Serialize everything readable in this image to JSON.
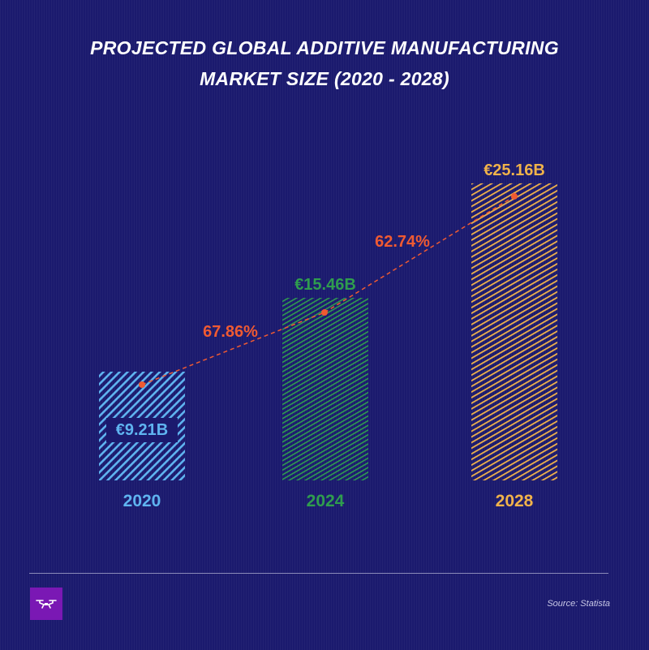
{
  "title_lines": [
    "PROJECTED GLOBAL ADDITIVE MANUFACTURING",
    "MARKET SIZE (2020 - 2028)"
  ],
  "source": "Source: Statista",
  "colors": {
    "background": "#1b1a6e",
    "bar_2020": "#5fb4f0",
    "bar_2024": "#2f9d4e",
    "bar_2028": "#f0b24a",
    "growth": "#ef5a32",
    "logo": "#7a18b4"
  },
  "logo_icon": "drone-icon",
  "chart_data": {
    "type": "bar",
    "title": "PROJECTED GLOBAL ADDITIVE MANUFACTURING MARKET SIZE (2020 - 2028)",
    "categories": [
      "2020",
      "2024",
      "2028"
    ],
    "values": [
      9.21,
      15.46,
      25.16
    ],
    "value_labels": [
      "€9.21B",
      "€15.46B",
      "€25.16B"
    ],
    "unit": "€B",
    "ylim": [
      0,
      27
    ],
    "grid": false,
    "growth_line": {
      "type": "line",
      "labels": [
        "67.86%",
        "62.74%"
      ]
    }
  }
}
